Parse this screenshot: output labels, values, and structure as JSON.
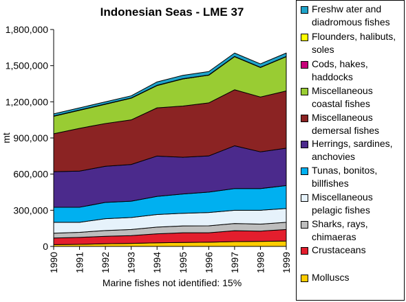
{
  "note": "Marine fishes not identified: 15%",
  "chart_data": {
    "type": "area",
    "stacked": true,
    "title": "Indonesian Seas - LME 37",
    "xlabel": "",
    "ylabel": "mt",
    "x": [
      "1990",
      "1991",
      "1992",
      "1993",
      "1994",
      "1995",
      "1996",
      "1997",
      "1998",
      "1999"
    ],
    "ylim": [
      0,
      1800000
    ],
    "yticks": [
      "0",
      "300,000",
      "600,000",
      "900,000",
      "1,200,000",
      "1,500,000",
      "1,800,000"
    ],
    "legend_position": "right",
    "series": [
      {
        "name": "Molluscs",
        "color": "#ffcc00",
        "values": [
          15000,
          17000,
          22000,
          25000,
          30000,
          33000,
          35000,
          40000,
          42000,
          45000
        ]
      },
      {
        "name": "Crustaceans",
        "color": "#e31e2d",
        "values": [
          55000,
          58000,
          62000,
          65000,
          75000,
          80000,
          78000,
          90000,
          85000,
          95000
        ]
      },
      {
        "name": "Sharks, rays, chimaeras",
        "color": "#bdbdbd",
        "values": [
          40000,
          42000,
          48000,
          50000,
          55000,
          57000,
          58000,
          60000,
          58000,
          60000
        ]
      },
      {
        "name": "Miscellaneous pelagic fishes",
        "color": "#e6f2fb",
        "values": [
          90000,
          83000,
          98000,
          100000,
          105000,
          105000,
          110000,
          110000,
          115000,
          115000
        ]
      },
      {
        "name": "Tunas, bonitos, billfishes",
        "color": "#00b0f0",
        "values": [
          125000,
          125000,
          135000,
          135000,
          150000,
          160000,
          170000,
          180000,
          180000,
          190000
        ]
      },
      {
        "name": "Herrings, sardines, anchovies",
        "color": "#4b2a8c",
        "values": [
          295000,
          300000,
          300000,
          305000,
          335000,
          305000,
          300000,
          355000,
          305000,
          310000
        ]
      },
      {
        "name": "Miscellaneous demersal fishes",
        "color": "#8b2323",
        "values": [
          315000,
          355000,
          355000,
          370000,
          400000,
          425000,
          440000,
          465000,
          455000,
          475000
        ]
      },
      {
        "name": "Miscellaneous coastal fishes",
        "color": "#99cc33",
        "values": [
          145000,
          150000,
          160000,
          180000,
          185000,
          225000,
          230000,
          275000,
          245000,
          285000
        ]
      },
      {
        "name": "Cods, hakes, haddocks",
        "color": "#c8007a",
        "values": [
          0,
          0,
          0,
          0,
          0,
          0,
          0,
          0,
          0,
          0
        ]
      },
      {
        "name": "Flounders, halibuts, soles",
        "color": "#ffff00",
        "values": [
          2000,
          2000,
          2000,
          2000,
          2000,
          2000,
          2000,
          2000,
          2000,
          2000
        ]
      },
      {
        "name": "Freshwater and diadromous fishes",
        "color": "#1fa3c9",
        "values": [
          18000,
          18000,
          18000,
          18000,
          28000,
          28000,
          28000,
          28000,
          28000,
          28000
        ]
      }
    ],
    "legend_order": [
      "Freshwater and diadromous fishes",
      "Flounders, halibuts, soles",
      "Cods, hakes, haddocks",
      "Miscellaneous coastal fishes",
      "Miscellaneous demersal fishes",
      "Herrings, sardines, anchovies",
      "Tunas, bonitos, billfishes",
      "Miscellaneous pelagic fishes",
      "Sharks, rays, chimaeras",
      "Crustaceans",
      "Molluscs"
    ],
    "legend_labels": [
      "Freshw ater and diadromous fishes",
      "Flounders, halibuts, soles",
      "Cods, hakes, haddocks",
      "Miscellaneous coastal fishes",
      "Miscellaneous demersal fishes",
      "Herrings, sardines, anchovies",
      "Tunas, bonitos, billfishes",
      "Miscellaneous pelagic fishes",
      "Sharks, rays, chimaeras",
      "Crustaceans",
      "Molluscs"
    ]
  }
}
